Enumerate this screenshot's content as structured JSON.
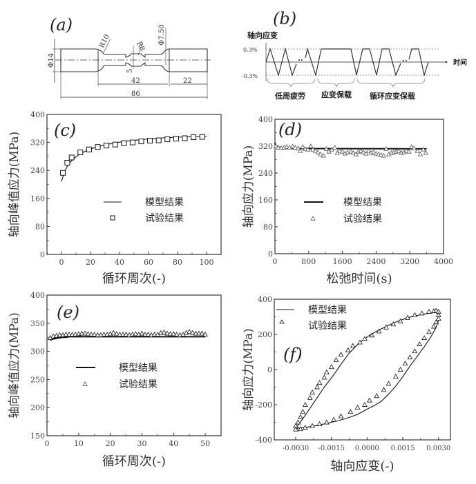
{
  "panel_a": {
    "label": "(a)",
    "dims": {
      "d14": "Φ14",
      "r10": "R10",
      "r8": "R8",
      "d750": "Φ7.50",
      "d5": "5",
      "l42": "42",
      "l22": "22",
      "l86": "86"
    }
  },
  "panel_b": {
    "label": "(b)",
    "ylabel": "轴向应变",
    "xlabel": "时间",
    "tick_pos": "0.3%",
    "tick_neg": "-0.3%",
    "dots1": "..",
    "dots2": "..",
    "phases": [
      "低周疲劳",
      "应变保载",
      "循环应变保载"
    ]
  },
  "colors": {
    "ink": "#222222",
    "axis": "#333333",
    "tick_text": "#444444",
    "grid_dash": "#777777"
  },
  "chart_data": [
    {
      "id": "c",
      "type": "line+scatter",
      "label": "(c)",
      "xlabel": "循环周次(-)",
      "ylabel": "轴向峰值应力(MPa)",
      "xlim": [
        -10,
        110
      ],
      "ylim": [
        0,
        400
      ],
      "xticks": [
        "0",
        "20",
        "40",
        "60",
        "80",
        "100"
      ],
      "xtick_values": [
        0,
        20,
        40,
        60,
        80,
        100
      ],
      "yticks": [
        "0",
        "80",
        "160",
        "240",
        "320",
        "400"
      ],
      "ytick_values": [
        0,
        80,
        160,
        240,
        320,
        400
      ],
      "legend": {
        "position": "center",
        "model": "模型结果",
        "test": "试验结果"
      },
      "series": [
        {
          "name": "模型结果",
          "kind": "line",
          "x": [
            0,
            2,
            4,
            6,
            8,
            10,
            14,
            18,
            22,
            26,
            30,
            36,
            42,
            50,
            60,
            70,
            80,
            90,
            100
          ],
          "y": [
            208,
            236,
            252,
            263,
            272,
            279,
            290,
            298,
            304,
            309,
            313,
            318,
            322,
            326,
            330,
            333,
            335,
            337,
            338
          ]
        },
        {
          "name": "试验结果",
          "kind": "square",
          "x": [
            1,
            4,
            7,
            13,
            19,
            25,
            31,
            37,
            43,
            49,
            55,
            61,
            67,
            73,
            79,
            85,
            91,
            97
          ],
          "y": [
            233,
            262,
            277,
            292,
            300,
            307,
            311,
            314,
            318,
            320,
            323,
            325,
            326,
            329,
            331,
            332,
            335,
            336
          ]
        }
      ]
    },
    {
      "id": "d",
      "type": "line+scatter",
      "label": "(d)",
      "xlabel": "松弛时间(s)",
      "ylabel": "轴向应力(MPa)",
      "xlim": [
        0,
        4000
      ],
      "ylim": [
        0,
        400
      ],
      "xticks": [
        "0",
        "800",
        "1600",
        "2400",
        "3200",
        "4000"
      ],
      "xtick_values": [
        0,
        800,
        1600,
        2400,
        3200,
        4000
      ],
      "yticks": [
        "0",
        "80",
        "160",
        "240",
        "320",
        "400"
      ],
      "ytick_values": [
        0,
        80,
        160,
        240,
        320,
        400
      ],
      "legend": {
        "position": "center",
        "model": "模型结果",
        "test": "试验结果"
      },
      "series": [
        {
          "name": "模型结果",
          "kind": "line",
          "x": [
            0,
            20,
            60,
            150,
            300,
            3600
          ],
          "y": [
            330,
            322,
            318,
            315,
            313,
            312
          ]
        },
        {
          "name": "试验结果",
          "kind": "triangle",
          "x": [
            20,
            80,
            150,
            220,
            280,
            350,
            420,
            480,
            550,
            600,
            660,
            720,
            780,
            850,
            900,
            960,
            1020,
            1080,
            1150,
            1220,
            1280,
            1350,
            1420,
            1480,
            1540,
            1600,
            1660,
            1720,
            1800,
            1860,
            1920,
            1980,
            2040,
            2100,
            2160,
            2220,
            2280,
            2340,
            2400,
            2460,
            2520,
            2580,
            2640,
            2700,
            2760,
            2820,
            2880,
            2940,
            3000,
            3060,
            3120,
            3180,
            3240,
            3300,
            3380,
            3450,
            3520,
            3580
          ],
          "y": [
            320,
            316,
            315,
            316,
            318,
            316,
            319,
            316,
            314,
            306,
            318,
            312,
            310,
            320,
            310,
            306,
            302,
            296,
            292,
            312,
            304,
            310,
            316,
            300,
            306,
            304,
            298,
            302,
            304,
            300,
            296,
            304,
            306,
            302,
            298,
            306,
            300,
            302,
            298,
            296,
            294,
            292,
            312,
            296,
            300,
            302,
            304,
            306,
            300,
            302,
            306,
            304,
            318,
            314,
            306,
            296,
            310,
            300
          ]
        }
      ]
    },
    {
      "id": "e",
      "type": "line+scatter",
      "label": "(e)",
      "xlabel": "循环周次(-)",
      "ylabel": "轴向峰值应力(MPa)",
      "xlim": [
        0,
        55
      ],
      "ylim": [
        150,
        400
      ],
      "xticks": [
        "0",
        "10",
        "20",
        "30",
        "40",
        "50"
      ],
      "xtick_values": [
        0,
        10,
        20,
        30,
        40,
        50
      ],
      "yticks": [
        "150",
        "200",
        "250",
        "300",
        "350",
        "400"
      ],
      "ytick_values": [
        150,
        200,
        250,
        300,
        350,
        400
      ],
      "legend": {
        "position": "center",
        "model": "模型结果",
        "test": "试验结果"
      },
      "series": [
        {
          "name": "模型结果",
          "kind": "line",
          "x": [
            1,
            2,
            3,
            4,
            5,
            6,
            7,
            8,
            10,
            50
          ],
          "y": [
            320,
            322,
            323,
            324,
            325,
            325,
            326,
            326,
            326,
            326
          ]
        },
        {
          "name": "试验结果",
          "kind": "triangle",
          "x": [
            1,
            2,
            3,
            4,
            5,
            6,
            7,
            8,
            9,
            10,
            11,
            12,
            13,
            14,
            15,
            16,
            17,
            18,
            19,
            20,
            21,
            22,
            23,
            24,
            25,
            26,
            27,
            28,
            29,
            30,
            31,
            32,
            33,
            34,
            35,
            36,
            37,
            38,
            39,
            40,
            41,
            42,
            43,
            44,
            45,
            46,
            47,
            48,
            49,
            50
          ],
          "y": [
            324,
            327,
            328,
            329,
            329,
            330,
            330,
            330,
            330,
            331,
            332,
            332,
            331,
            330,
            330,
            329,
            329,
            330,
            330,
            331,
            333,
            331,
            330,
            330,
            330,
            329,
            330,
            331,
            330,
            332,
            330,
            330,
            329,
            330,
            330,
            333,
            334,
            332,
            331,
            331,
            330,
            329,
            330,
            333,
            335,
            333,
            332,
            332,
            332,
            330
          ]
        }
      ]
    },
    {
      "id": "f",
      "type": "line+scatter",
      "label": "(f)",
      "xlabel": "轴向应变(-)",
      "ylabel": "轴向应力(MPa)",
      "xlim": [
        -0.0039,
        0.0035
      ],
      "ylim": [
        -400,
        400
      ],
      "xticks": [
        "-0.0030",
        "-0.0015",
        "0.0000",
        "0.0015",
        "0.0030"
      ],
      "xtick_values": [
        -0.003,
        -0.0015,
        0,
        0.0015,
        0.003
      ],
      "yticks": [
        "-400",
        "-200",
        "0",
        "200",
        "400"
      ],
      "ytick_values": [
        -400,
        -200,
        0,
        200,
        400
      ],
      "legend": {
        "position": "top-left",
        "model": "模型结果",
        "test": "试验结果"
      },
      "series": [
        {
          "name": "模型结果",
          "kind": "line",
          "x": [
            -0.003,
            -0.0026,
            -0.0022,
            -0.0018,
            -0.0014,
            -0.0011,
            -0.0008,
            -0.0005,
            -0.0002,
            0.0001,
            0.0005,
            0.0009,
            0.0013,
            0.0017,
            0.0021,
            0.0025,
            0.0028,
            0.003,
            0.003,
            0.0029,
            0.0027,
            0.0024,
            0.0021,
            0.0018,
            0.0015,
            0.0012,
            0.0009,
            0.0006,
            0.0003,
            0.0,
            -0.0004,
            -0.0008,
            -0.0012,
            -0.0016,
            -0.002,
            -0.0024,
            -0.0028,
            -0.003
          ],
          "y": [
            -335,
            -260,
            -180,
            -100,
            -30,
            30,
            85,
            130,
            165,
            195,
            225,
            252,
            275,
            295,
            308,
            318,
            323,
            325,
            280,
            240,
            190,
            130,
            75,
            20,
            -40,
            -95,
            -140,
            -180,
            -205,
            -225,
            -255,
            -275,
            -290,
            -303,
            -315,
            -325,
            -332,
            -335
          ]
        },
        {
          "name": "试验结果",
          "kind": "triangle",
          "x": [
            -0.003,
            -0.0029,
            -0.0028,
            -0.0027,
            -0.0026,
            -0.0024,
            -0.0023,
            -0.0021,
            -0.002,
            -0.0018,
            -0.0017,
            -0.0015,
            -0.0013,
            -0.0011,
            -0.0008,
            -0.0006,
            -0.0003,
            -0.0001,
            0.0002,
            0.0005,
            0.0008,
            0.0011,
            0.0014,
            0.0017,
            0.002,
            0.0023,
            0.0026,
            0.0028,
            0.0029,
            0.003,
            0.003,
            0.003,
            0.0029,
            0.0028,
            0.0026,
            0.0024,
            0.0022,
            0.002,
            0.0018,
            0.0016,
            0.0014,
            0.0012,
            0.0009,
            0.0007,
            0.0004,
            0.0001,
            -0.0001,
            -0.0004,
            -0.0007,
            -0.0011,
            -0.0014,
            -0.0017,
            -0.002,
            -0.0023,
            -0.0026,
            -0.0028,
            -0.003
          ],
          "y": [
            -320,
            -300,
            -270,
            -240,
            -200,
            -160,
            -130,
            -100,
            -75,
            -45,
            -15,
            15,
            55,
            85,
            110,
            135,
            155,
            175,
            195,
            218,
            240,
            258,
            275,
            295,
            310,
            320,
            330,
            333,
            335,
            330,
            310,
            290,
            270,
            245,
            215,
            180,
            145,
            105,
            70,
            35,
            0,
            -40,
            -80,
            -115,
            -150,
            -175,
            -200,
            -215,
            -240,
            -265,
            -285,
            -300,
            -310,
            -320,
            -330,
            -338,
            -340
          ]
        }
      ]
    }
  ]
}
